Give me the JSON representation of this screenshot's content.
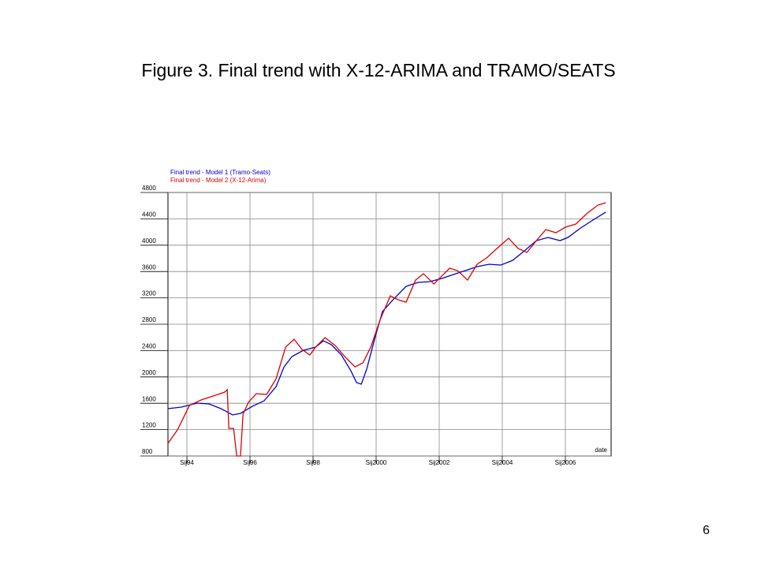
{
  "page_number": "6",
  "chart_data": {
    "type": "line",
    "title": "Figure 3. Final trend with X-12-ARIMA and TRAMO/SEATS",
    "x_label": "date",
    "xlim": [
      1993.4,
      2007.45
    ],
    "ylim": [
      800,
      4800
    ],
    "xticks": [
      {
        "value": 1994,
        "label": "Sij94"
      },
      {
        "value": 1996,
        "label": "Sij96"
      },
      {
        "value": 1998,
        "label": "Sij98"
      },
      {
        "value": 2000,
        "label": "Sij2000"
      },
      {
        "value": 2002,
        "label": "Sij2002"
      },
      {
        "value": 2004,
        "label": "Sij2004"
      },
      {
        "value": 2006,
        "label": "Sij2006"
      }
    ],
    "yticks": [
      800,
      1200,
      1600,
      2000,
      2400,
      2800,
      3200,
      3600,
      4000,
      4400,
      4800
    ],
    "grid": true,
    "legend": "top-left",
    "series": [
      {
        "name": "Final trend - Model 1 (Tramo-Seats)",
        "color": "#0000cc",
        "x": [
          1993.4,
          1993.83,
          1994.33,
          1994.7,
          1995.08,
          1995.45,
          1995.7,
          1996.08,
          1996.45,
          1996.83,
          1997.08,
          1997.33,
          1997.7,
          1998.08,
          1998.33,
          1998.58,
          1998.9,
          1999.2,
          1999.38,
          1999.53,
          1999.7,
          1999.95,
          2000.2,
          2000.58,
          2000.95,
          2001.33,
          2001.7,
          2002.08,
          2002.45,
          2002.83,
          2003.2,
          2003.58,
          2003.95,
          2004.33,
          2004.7,
          2005.08,
          2005.45,
          2005.83,
          2006.08,
          2006.45,
          2006.83,
          2007.28
        ],
        "values": [
          1519,
          1543,
          1602,
          1590,
          1519,
          1423,
          1447,
          1555,
          1638,
          1854,
          2153,
          2309,
          2405,
          2453,
          2549,
          2489,
          2333,
          2093,
          1914,
          1890,
          2117,
          2572,
          2992,
          3195,
          3375,
          3435,
          3447,
          3495,
          3555,
          3614,
          3674,
          3710,
          3698,
          3770,
          3914,
          4069,
          4117,
          4069,
          4117,
          4249,
          4369,
          4501
        ]
      },
      {
        "name": "Final trend - Model 2 (X-12-Arima)",
        "color": "#dd0000",
        "x": [
          1993.4,
          1993.7,
          1994.08,
          1994.45,
          1994.83,
          1995.2,
          1995.28,
          1995.33,
          1995.48,
          1995.58,
          1995.7,
          1995.78,
          1995.95,
          1996.2,
          1996.53,
          1996.83,
          1997.13,
          1997.4,
          1997.65,
          1997.9,
          1998.08,
          1998.38,
          1998.7,
          1999.03,
          1999.33,
          1999.58,
          1999.83,
          2000.13,
          2000.45,
          2000.7,
          2000.95,
          2001.25,
          2001.5,
          2001.83,
          2002.08,
          2002.33,
          2002.58,
          2002.9,
          2003.2,
          2003.5,
          2003.83,
          2004.2,
          2004.5,
          2004.78,
          2005.08,
          2005.38,
          2005.7,
          2006.0,
          2006.33,
          2006.7,
          2007.03,
          2007.28
        ],
        "values": [
          992,
          1195,
          1566,
          1650,
          1710,
          1770,
          1806,
          1219,
          1219,
          800,
          800,
          1435,
          1614,
          1746,
          1734,
          1974,
          2453,
          2572,
          2417,
          2333,
          2453,
          2596,
          2477,
          2297,
          2153,
          2213,
          2453,
          2872,
          3231,
          3171,
          3135,
          3471,
          3567,
          3411,
          3531,
          3650,
          3614,
          3471,
          3710,
          3806,
          3950,
          4105,
          3950,
          3890,
          4069,
          4237,
          4189,
          4273,
          4321,
          4489,
          4608,
          4644
        ]
      }
    ]
  }
}
